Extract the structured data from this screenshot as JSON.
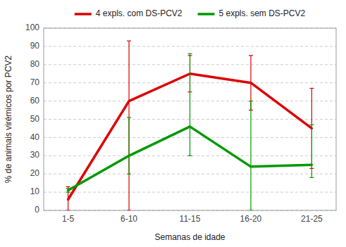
{
  "chart_data": {
    "type": "line",
    "categories": [
      "1-5",
      "6-10",
      "11-15",
      "16-20",
      "21-25"
    ],
    "series": [
      {
        "name": "4 expls. com DS-PCV2",
        "color": "#dd0000",
        "values": [
          6,
          60,
          75,
          70,
          45
        ],
        "yerr_upper": [
          13,
          93,
          85,
          85,
          67
        ],
        "yerr_lower": [
          0,
          0,
          65,
          55,
          23
        ]
      },
      {
        "name": "5 expls. sem DS-PCV2",
        "color": "#009900",
        "values": [
          11,
          30,
          46,
          24,
          25
        ],
        "yerr_upper": [
          12,
          51,
          86,
          60,
          47
        ],
        "yerr_lower": [
          10,
          20,
          30,
          0,
          18
        ]
      }
    ],
    "xlabel": "Semanas de idade",
    "ylabel": "% de animais virémicos por PCV2",
    "ylim": [
      0,
      100
    ],
    "yticks": [
      0,
      10,
      20,
      30,
      40,
      50,
      60,
      70,
      80,
      90,
      100
    ],
    "grid": true,
    "legend": "top"
  }
}
